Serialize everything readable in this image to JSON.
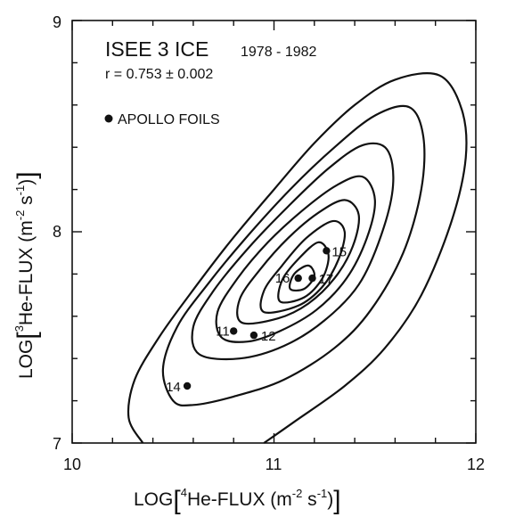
{
  "chart_data": {
    "type": "scatter",
    "title": "ISEE 3 ICE",
    "title_years": "1978 - 1982",
    "correlation_text": "r = 0.753 ± 0.002",
    "xlabel": "LOG[4He-FLUX (m-2 s-1)]",
    "ylabel": "LOG[3He-FLUX (m-2 s-1)]",
    "xlim": [
      10,
      12
    ],
    "ylim": [
      7,
      9
    ],
    "x_ticks": [
      "10",
      "11",
      "12"
    ],
    "y_ticks": [
      "7",
      "8",
      "9"
    ],
    "legend": {
      "label": "APOLLO FOILS",
      "placement": "top-left"
    },
    "grid": false,
    "series": [
      {
        "name": "APOLLO FOILS",
        "points": [
          {
            "label": "11",
            "x": 10.8,
            "y": 7.53
          },
          {
            "label": "12",
            "x": 10.9,
            "y": 7.51
          },
          {
            "label": "14",
            "x": 10.57,
            "y": 7.27
          },
          {
            "label": "15",
            "x": 11.26,
            "y": 7.91
          },
          {
            "label": "16",
            "x": 11.12,
            "y": 7.78
          },
          {
            "label": "17",
            "x": 11.19,
            "y": 7.78
          }
        ]
      }
    ],
    "contours": [
      {
        "level": 1,
        "points": [
          [
            10.35,
            7.0
          ],
          [
            10.28,
            7.12
          ],
          [
            10.31,
            7.3
          ],
          [
            10.43,
            7.5
          ],
          [
            10.58,
            7.7
          ],
          [
            10.78,
            7.95
          ],
          [
            11.0,
            8.2
          ],
          [
            11.2,
            8.42
          ],
          [
            11.4,
            8.6
          ],
          [
            11.6,
            8.72
          ],
          [
            11.82,
            8.74
          ],
          [
            11.93,
            8.58
          ],
          [
            11.95,
            8.35
          ],
          [
            11.88,
            8.05
          ],
          [
            11.73,
            7.7
          ],
          [
            11.55,
            7.45
          ],
          [
            11.35,
            7.27
          ],
          [
            11.1,
            7.1
          ],
          [
            10.95,
            7.0
          ]
        ],
        "closed": false
      },
      {
        "level": 2,
        "points": [
          [
            10.5,
            7.2
          ],
          [
            10.45,
            7.35
          ],
          [
            10.52,
            7.55
          ],
          [
            10.67,
            7.75
          ],
          [
            10.86,
            7.97
          ],
          [
            11.08,
            8.2
          ],
          [
            11.3,
            8.4
          ],
          [
            11.5,
            8.55
          ],
          [
            11.67,
            8.59
          ],
          [
            11.74,
            8.45
          ],
          [
            11.73,
            8.2
          ],
          [
            11.64,
            7.9
          ],
          [
            11.48,
            7.63
          ],
          [
            11.3,
            7.45
          ],
          [
            11.05,
            7.3
          ],
          [
            10.8,
            7.22
          ],
          [
            10.6,
            7.18
          ]
        ],
        "closed": true
      },
      {
        "level": 3,
        "points": [
          [
            10.63,
            7.42
          ],
          [
            10.6,
            7.55
          ],
          [
            10.7,
            7.72
          ],
          [
            10.87,
            7.92
          ],
          [
            11.07,
            8.12
          ],
          [
            11.27,
            8.3
          ],
          [
            11.44,
            8.41
          ],
          [
            11.56,
            8.39
          ],
          [
            11.59,
            8.22
          ],
          [
            11.53,
            7.98
          ],
          [
            11.42,
            7.75
          ],
          [
            11.25,
            7.58
          ],
          [
            11.05,
            7.46
          ],
          [
            10.83,
            7.4
          ]
        ],
        "closed": true
      },
      {
        "level": 4,
        "points": [
          [
            10.74,
            7.5
          ],
          [
            10.72,
            7.62
          ],
          [
            10.82,
            7.78
          ],
          [
            10.97,
            7.95
          ],
          [
            11.14,
            8.1
          ],
          [
            11.31,
            8.22
          ],
          [
            11.44,
            8.26
          ],
          [
            11.5,
            8.15
          ],
          [
            11.46,
            7.97
          ],
          [
            11.36,
            7.78
          ],
          [
            11.21,
            7.63
          ],
          [
            11.03,
            7.53
          ],
          [
            10.87,
            7.48
          ]
        ],
        "closed": true
      },
      {
        "level": 5,
        "points": [
          [
            10.84,
            7.57
          ],
          [
            10.83,
            7.68
          ],
          [
            10.93,
            7.82
          ],
          [
            11.07,
            7.97
          ],
          [
            11.22,
            8.09
          ],
          [
            11.35,
            8.15
          ],
          [
            11.42,
            8.08
          ],
          [
            11.39,
            7.93
          ],
          [
            11.3,
            7.78
          ],
          [
            11.17,
            7.66
          ],
          [
            11.02,
            7.59
          ]
        ],
        "closed": true
      },
      {
        "level": 6,
        "points": [
          [
            10.95,
            7.62
          ],
          [
            10.95,
            7.72
          ],
          [
            11.04,
            7.84
          ],
          [
            11.16,
            7.97
          ],
          [
            11.29,
            8.05
          ],
          [
            11.35,
            8.0
          ],
          [
            11.32,
            7.87
          ],
          [
            11.24,
            7.74
          ],
          [
            11.12,
            7.65
          ]
        ],
        "closed": true
      },
      {
        "level": 7,
        "points": [
          [
            11.03,
            7.67
          ],
          [
            11.04,
            7.77
          ],
          [
            11.12,
            7.87
          ],
          [
            11.22,
            7.95
          ],
          [
            11.27,
            7.89
          ],
          [
            11.24,
            7.78
          ],
          [
            11.15,
            7.69
          ]
        ],
        "closed": true
      },
      {
        "level": 8,
        "points": [
          [
            11.08,
            7.73
          ],
          [
            11.1,
            7.8
          ],
          [
            11.17,
            7.84
          ],
          [
            11.2,
            7.79
          ],
          [
            11.15,
            7.73
          ]
        ],
        "closed": true
      }
    ]
  }
}
